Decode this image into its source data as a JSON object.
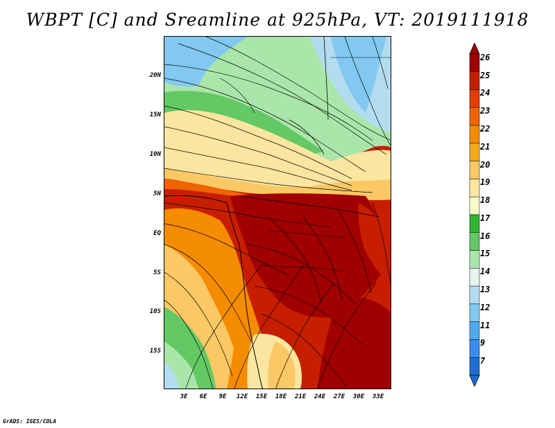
{
  "title": "WBPT [C] and Sreamline at 925hPa, VT: 2019111918",
  "credit": "GrADS: IGES/COLA",
  "map": {
    "lat_labels": [
      "20N",
      "15N",
      "10N",
      "5N",
      "EQ",
      "5S",
      "10S",
      "15S"
    ],
    "lon_labels": [
      "3E",
      "6E",
      "9E",
      "12E",
      "15E",
      "18E",
      "21E",
      "24E",
      "27E",
      "30E",
      "33E"
    ]
  },
  "colorbar": {
    "labels": [
      "26",
      "25",
      "24",
      "23",
      "22",
      "21",
      "20",
      "19",
      "18",
      "17",
      "16",
      "15",
      "14",
      "13",
      "12",
      "11",
      "9",
      "7"
    ],
    "colors": [
      "#a00000",
      "#c81e00",
      "#e63c00",
      "#f06400",
      "#f58c00",
      "#f5aa1e",
      "#fac864",
      "#fae6a0",
      "#f5fac8",
      "#32b432",
      "#64c864",
      "#aae6aa",
      "#e6f5f0",
      "#b4dcf0",
      "#82c8f0",
      "#50aaf0",
      "#3c8cf0",
      "#1e6ed2"
    ]
  }
}
